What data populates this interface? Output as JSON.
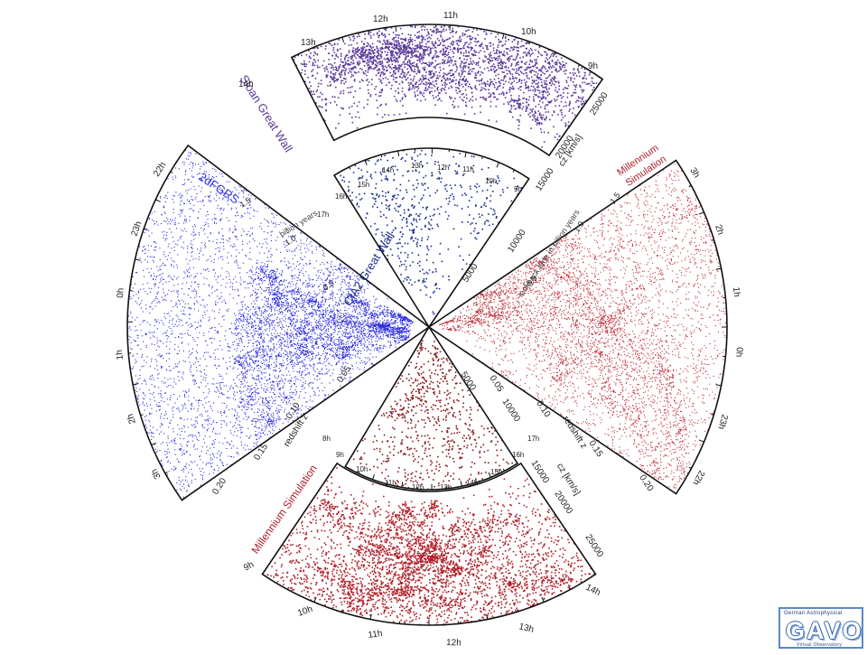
{
  "sloan": {
    "title": "Sloan Great Wall",
    "color": "#5b3a9a",
    "ra_ticks": [
      "14h",
      "13h",
      "12h",
      "11h",
      "10h",
      "9h"
    ],
    "cz_ticks": [
      "15000",
      "20000",
      "25000"
    ],
    "axis_label": "cz [km/s]"
  },
  "cfa2": {
    "title": "CfA2 Great Wall",
    "color": "#1a2f8f",
    "ra_ticks": [
      "17h",
      "16h",
      "15h",
      "14h",
      "13h",
      "12h",
      "11h",
      "10h",
      "9h",
      "8h"
    ],
    "cz_ticks": [
      "5000",
      "10000"
    ]
  },
  "twodf": {
    "title": "2dFGRS",
    "color": "#2a2ae0",
    "ra_ticks": [
      "22h",
      "23h",
      "0h",
      "1h",
      "2h",
      "3h"
    ],
    "z_ticks": [
      "0.05",
      "0.10",
      "0.15",
      "0.20"
    ],
    "z_label": "redshift z",
    "lookback_ticks": [
      "0.5",
      "1.0",
      "1.5"
    ],
    "lookback_label": "billion years"
  },
  "mill_right": {
    "title_line1": "Millennium",
    "title_line2": "Simulation",
    "color": "#b0202a",
    "ra_ticks": [
      "3h",
      "2h",
      "1h",
      "0h",
      "23h",
      "22h"
    ],
    "z_ticks": [
      "0.05",
      "0.10",
      "0.15",
      "0.20"
    ],
    "z_label": "redshift z",
    "lookback_ticks": [
      "0.5",
      "1.0",
      "1.5"
    ],
    "lookback_label": "lookback time in billion years"
  },
  "mill_bottom_small": {
    "color": "#8a1a1a",
    "ra_ticks": [
      "9h",
      "10h",
      "11h",
      "12h",
      "13h",
      "14h",
      "15h",
      "16h",
      "17h",
      "8h"
    ],
    "cz_ticks": [
      "5000",
      "10000"
    ]
  },
  "mill_bottom": {
    "title": "Millennium Simulation",
    "color": "#b0202a",
    "ra_ticks": [
      "9h",
      "10h",
      "11h",
      "12h",
      "13h",
      "14h"
    ],
    "cz_ticks": [
      "15000",
      "20000",
      "25000"
    ],
    "axis_label": "cz [km/s]"
  },
  "logo": {
    "top": "German Astrophysical",
    "main": "GAVO",
    "bottom": "Virtual Observatory"
  }
}
